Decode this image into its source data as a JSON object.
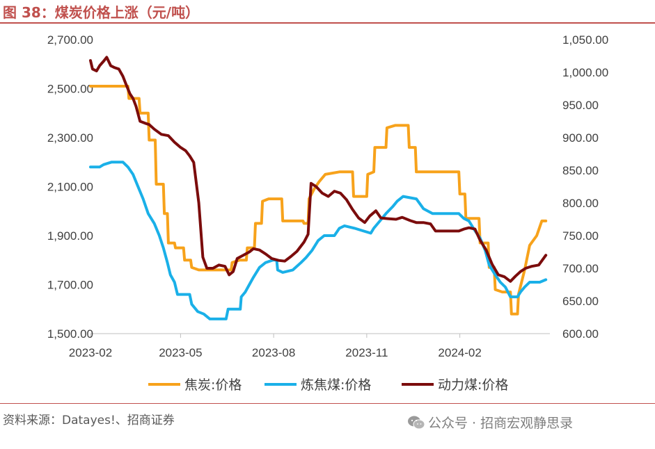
{
  "figure": {
    "title": "图 38：煤炭价格上涨（元/吨）",
    "source": "资料来源：Datayes!、招商证券",
    "watermark": "公众号 · 招商宏观静思录",
    "watermark_icon": "wechat-icon",
    "accent_color": "#c0504d"
  },
  "chart_data": {
    "type": "line",
    "x_ticks": [
      "2023-02",
      "2023-05",
      "2023-08",
      "2023-11",
      "2024-02"
    ],
    "x_range": [
      "2023-02-01",
      "2024-04-30"
    ],
    "y_left": {
      "ylim": [
        1500,
        2700
      ],
      "ticks": [
        "1,500.00",
        "1,700.00",
        "1,900.00",
        "2,100.00",
        "2,300.00",
        "2,500.00",
        "2,700.00"
      ]
    },
    "y_right": {
      "ylim": [
        600,
        1050
      ],
      "ticks": [
        "600.00",
        "650.00",
        "700.00",
        "750.00",
        "800.00",
        "850.00",
        "900.00",
        "950.00",
        "1,000.00",
        "1,050.00"
      ]
    },
    "grid": false,
    "legend_position": "bottom",
    "series": [
      {
        "name": "焦炭:价格",
        "axis": "left",
        "color": "#f7a21b",
        "points": [
          [
            "2023-02-01",
            2510
          ],
          [
            "2023-03-10",
            2510
          ],
          [
            "2023-03-11",
            2460
          ],
          [
            "2023-03-21",
            2460
          ],
          [
            "2023-03-22",
            2400
          ],
          [
            "2023-03-30",
            2400
          ],
          [
            "2023-03-31",
            2290
          ],
          [
            "2023-04-06",
            2290
          ],
          [
            "2023-04-07",
            2110
          ],
          [
            "2023-04-14",
            2110
          ],
          [
            "2023-04-15",
            1990
          ],
          [
            "2023-04-18",
            1990
          ],
          [
            "2023-04-19",
            1870
          ],
          [
            "2023-04-25",
            1870
          ],
          [
            "2023-04-26",
            1850
          ],
          [
            "2023-05-04",
            1850
          ],
          [
            "2023-05-05",
            1800
          ],
          [
            "2023-05-11",
            1800
          ],
          [
            "2023-05-12",
            1770
          ],
          [
            "2023-05-19",
            1760
          ],
          [
            "2023-06-20",
            1760
          ],
          [
            "2023-06-21",
            1790
          ],
          [
            "2023-06-28",
            1800
          ],
          [
            "2023-07-05",
            1800
          ],
          [
            "2023-07-06",
            1850
          ],
          [
            "2023-07-13",
            1850
          ],
          [
            "2023-07-14",
            1950
          ],
          [
            "2023-07-20",
            1950
          ],
          [
            "2023-07-21",
            2040
          ],
          [
            "2023-07-27",
            2050
          ],
          [
            "2023-08-09",
            2050
          ],
          [
            "2023-08-10",
            1960
          ],
          [
            "2023-08-30",
            1960
          ],
          [
            "2023-08-31",
            1950
          ],
          [
            "2023-09-04",
            1950
          ],
          [
            "2023-09-05",
            2050
          ],
          [
            "2023-09-10",
            2090
          ],
          [
            "2023-09-15",
            2120
          ],
          [
            "2023-09-21",
            2150
          ],
          [
            "2023-10-05",
            2160
          ],
          [
            "2023-10-18",
            2160
          ],
          [
            "2023-10-19",
            2060
          ],
          [
            "2023-11-01",
            2060
          ],
          [
            "2023-11-02",
            2150
          ],
          [
            "2023-11-08",
            2160
          ],
          [
            "2023-11-09",
            2260
          ],
          [
            "2023-11-20",
            2260
          ],
          [
            "2023-11-21",
            2340
          ],
          [
            "2023-11-29",
            2350
          ],
          [
            "2023-12-12",
            2350
          ],
          [
            "2023-12-13",
            2260
          ],
          [
            "2023-12-19",
            2260
          ],
          [
            "2023-12-20",
            2160
          ],
          [
            "2024-01-31",
            2160
          ],
          [
            "2024-02-01",
            2070
          ],
          [
            "2024-02-06",
            2070
          ],
          [
            "2024-02-07",
            1970
          ],
          [
            "2024-02-20",
            1970
          ],
          [
            "2024-02-21",
            1870
          ],
          [
            "2024-02-29",
            1870
          ],
          [
            "2024-03-01",
            1770
          ],
          [
            "2024-03-06",
            1770
          ],
          [
            "2024-03-07",
            1680
          ],
          [
            "2024-03-14",
            1670
          ],
          [
            "2024-03-22",
            1670
          ],
          [
            "2024-03-23",
            1580
          ],
          [
            "2024-03-29",
            1580
          ],
          [
            "2024-03-30",
            1660
          ],
          [
            "2024-04-05",
            1760
          ],
          [
            "2024-04-10",
            1860
          ],
          [
            "2024-04-17",
            1900
          ],
          [
            "2024-04-22",
            1960
          ],
          [
            "2024-04-26",
            1960
          ]
        ]
      },
      {
        "name": "炼焦煤:价格",
        "axis": "left",
        "color": "#1ab0e8",
        "points": [
          [
            "2023-02-01",
            2180
          ],
          [
            "2023-02-10",
            2180
          ],
          [
            "2023-02-14",
            2190
          ],
          [
            "2023-02-22",
            2200
          ],
          [
            "2023-03-05",
            2200
          ],
          [
            "2023-03-10",
            2180
          ],
          [
            "2023-03-15",
            2150
          ],
          [
            "2023-03-20",
            2100
          ],
          [
            "2023-03-25",
            2050
          ],
          [
            "2023-03-30",
            1990
          ],
          [
            "2023-04-05",
            1950
          ],
          [
            "2023-04-10",
            1900
          ],
          [
            "2023-04-14",
            1850
          ],
          [
            "2023-04-18",
            1790
          ],
          [
            "2023-04-21",
            1740
          ],
          [
            "2023-04-25",
            1710
          ],
          [
            "2023-04-28",
            1660
          ],
          [
            "2023-05-10",
            1660
          ],
          [
            "2023-05-12",
            1620
          ],
          [
            "2023-05-18",
            1590
          ],
          [
            "2023-05-24",
            1580
          ],
          [
            "2023-05-30",
            1560
          ],
          [
            "2023-06-15",
            1560
          ],
          [
            "2023-06-17",
            1600
          ],
          [
            "2023-06-29",
            1600
          ],
          [
            "2023-06-30",
            1650
          ],
          [
            "2023-07-04",
            1670
          ],
          [
            "2023-07-08",
            1700
          ],
          [
            "2023-07-12",
            1730
          ],
          [
            "2023-07-18",
            1770
          ],
          [
            "2023-07-24",
            1790
          ],
          [
            "2023-07-31",
            1800
          ],
          [
            "2023-08-04",
            1800
          ],
          [
            "2023-08-05",
            1760
          ],
          [
            "2023-08-10",
            1750
          ],
          [
            "2023-08-20",
            1760
          ],
          [
            "2023-08-28",
            1790
          ],
          [
            "2023-09-02",
            1810
          ],
          [
            "2023-09-08",
            1840
          ],
          [
            "2023-09-14",
            1880
          ],
          [
            "2023-09-20",
            1900
          ],
          [
            "2023-09-30",
            1900
          ],
          [
            "2023-10-05",
            1930
          ],
          [
            "2023-10-10",
            1940
          ],
          [
            "2023-10-20",
            1930
          ],
          [
            "2023-10-28",
            1920
          ],
          [
            "2023-11-05",
            1910
          ],
          [
            "2023-11-08",
            1930
          ],
          [
            "2023-11-14",
            1960
          ],
          [
            "2023-11-20",
            1990
          ],
          [
            "2023-11-27",
            2020
          ],
          [
            "2023-12-01",
            2040
          ],
          [
            "2023-12-07",
            2060
          ],
          [
            "2023-12-20",
            2050
          ],
          [
            "2023-12-27",
            2010
          ],
          [
            "2024-01-05",
            1990
          ],
          [
            "2024-01-31",
            1990
          ],
          [
            "2024-02-05",
            1970
          ],
          [
            "2024-02-10",
            1960
          ],
          [
            "2024-02-16",
            1920
          ],
          [
            "2024-02-21",
            1890
          ],
          [
            "2024-02-26",
            1840
          ],
          [
            "2024-03-01",
            1780
          ],
          [
            "2024-03-07",
            1740
          ],
          [
            "2024-03-12",
            1710
          ],
          [
            "2024-03-17",
            1690
          ],
          [
            "2024-03-22",
            1650
          ],
          [
            "2024-03-29",
            1650
          ],
          [
            "2024-04-01",
            1670
          ],
          [
            "2024-04-05",
            1690
          ],
          [
            "2024-04-10",
            1710
          ],
          [
            "2024-04-20",
            1710
          ],
          [
            "2024-04-26",
            1720
          ]
        ]
      },
      {
        "name": "动力煤:价格",
        "axis": "right",
        "color": "#7b0c0c",
        "points": [
          [
            "2023-02-01",
            1018
          ],
          [
            "2023-02-03",
            1005
          ],
          [
            "2023-02-07",
            1002
          ],
          [
            "2023-02-10",
            1010
          ],
          [
            "2023-02-14",
            1017
          ],
          [
            "2023-02-17",
            1023
          ],
          [
            "2023-02-21",
            1010
          ],
          [
            "2023-02-25",
            1007
          ],
          [
            "2023-03-01",
            1005
          ],
          [
            "2023-03-05",
            994
          ],
          [
            "2023-03-08",
            982
          ],
          [
            "2023-03-12",
            967
          ],
          [
            "2023-03-15",
            960
          ],
          [
            "2023-03-18",
            948
          ],
          [
            "2023-03-22",
            925
          ],
          [
            "2023-03-27",
            922
          ],
          [
            "2023-03-31",
            920
          ],
          [
            "2023-04-05",
            913
          ],
          [
            "2023-04-12",
            905
          ],
          [
            "2023-04-19",
            903
          ],
          [
            "2023-04-25",
            893
          ],
          [
            "2023-05-01",
            885
          ],
          [
            "2023-05-06",
            880
          ],
          [
            "2023-05-10",
            872
          ],
          [
            "2023-05-14",
            862
          ],
          [
            "2023-05-19",
            800
          ],
          [
            "2023-05-23",
            717
          ],
          [
            "2023-05-27",
            700
          ],
          [
            "2023-06-02",
            700
          ],
          [
            "2023-06-08",
            705
          ],
          [
            "2023-06-14",
            703
          ],
          [
            "2023-06-18",
            690
          ],
          [
            "2023-06-22",
            695
          ],
          [
            "2023-06-26",
            715
          ],
          [
            "2023-07-02",
            720
          ],
          [
            "2023-07-08",
            725
          ],
          [
            "2023-07-12",
            730
          ],
          [
            "2023-07-18",
            728
          ],
          [
            "2023-07-24",
            722
          ],
          [
            "2023-07-30",
            715
          ],
          [
            "2023-08-06",
            712
          ],
          [
            "2023-08-12",
            711
          ],
          [
            "2023-08-18",
            718
          ],
          [
            "2023-08-24",
            726
          ],
          [
            "2023-08-31",
            740
          ],
          [
            "2023-09-04",
            752
          ],
          [
            "2023-09-07",
            830
          ],
          [
            "2023-09-12",
            825
          ],
          [
            "2023-09-18",
            815
          ],
          [
            "2023-09-24",
            810
          ],
          [
            "2023-09-30",
            818
          ],
          [
            "2023-10-06",
            815
          ],
          [
            "2023-10-12",
            805
          ],
          [
            "2023-10-18",
            790
          ],
          [
            "2023-10-24",
            777
          ],
          [
            "2023-10-30",
            770
          ],
          [
            "2023-11-04",
            780
          ],
          [
            "2023-11-10",
            788
          ],
          [
            "2023-11-15",
            777
          ],
          [
            "2023-11-22",
            776
          ],
          [
            "2023-11-30",
            775
          ],
          [
            "2023-12-06",
            778
          ],
          [
            "2023-12-14",
            773
          ],
          [
            "2023-12-20",
            770
          ],
          [
            "2023-12-27",
            770
          ],
          [
            "2024-01-03",
            768
          ],
          [
            "2024-01-08",
            757
          ],
          [
            "2024-01-16",
            757
          ],
          [
            "2024-01-31",
            757
          ],
          [
            "2024-02-05",
            760
          ],
          [
            "2024-02-10",
            762
          ],
          [
            "2024-02-16",
            760
          ],
          [
            "2024-02-21",
            743
          ],
          [
            "2024-02-27",
            728
          ],
          [
            "2024-03-04",
            706
          ],
          [
            "2024-03-10",
            690
          ],
          [
            "2024-03-16",
            687
          ],
          [
            "2024-03-22",
            680
          ],
          [
            "2024-03-27",
            688
          ],
          [
            "2024-04-01",
            695
          ],
          [
            "2024-04-06",
            700
          ],
          [
            "2024-04-12",
            703
          ],
          [
            "2024-04-19",
            705
          ],
          [
            "2024-04-26",
            720
          ]
        ]
      }
    ]
  }
}
